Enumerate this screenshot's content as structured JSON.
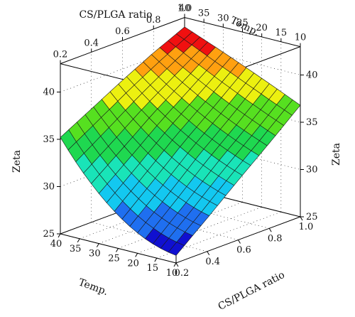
{
  "chart_data": {
    "type": "surface",
    "zlabel": "Zeta",
    "axes": {
      "ratio": {
        "label": "CS/PLGA ratio",
        "ticks": [
          0.2,
          0.4,
          0.6,
          0.8,
          1.0
        ],
        "tick_labels": [
          "0.2",
          "0.4",
          "0.6",
          "0.8",
          "1.0"
        ],
        "range": [
          0.2,
          1.0
        ]
      },
      "temp": {
        "label": "Temp.",
        "ticks": [
          10,
          15,
          20,
          25,
          30,
          35,
          40
        ],
        "tick_labels": [
          "10",
          "15",
          "20",
          "25",
          "30",
          "35",
          "40"
        ],
        "range": [
          10,
          40
        ]
      },
      "zeta": {
        "label": "Zeta",
        "ticks": [
          25,
          30,
          35,
          40
        ],
        "tick_labels": [
          "25",
          "30",
          "35",
          "40"
        ],
        "range": [
          25,
          43
        ]
      }
    },
    "grid": true,
    "color_bands": [
      {
        "from": 25,
        "to": 27,
        "color": "#1010d0"
      },
      {
        "from": 27,
        "to": 29,
        "color": "#1f6ff0"
      },
      {
        "from": 29,
        "to": 31,
        "color": "#13c8f0"
      },
      {
        "from": 31,
        "to": 33,
        "color": "#19e4b8"
      },
      {
        "from": 33,
        "to": 35,
        "color": "#1fd850"
      },
      {
        "from": 35,
        "to": 37,
        "color": "#56e020"
      },
      {
        "from": 37,
        "to": 39,
        "color": "#ecf010"
      },
      {
        "from": 39,
        "to": 40.5,
        "color": "#ffa010"
      },
      {
        "from": 40.5,
        "to": 43,
        "color": "#f01010"
      }
    ],
    "surface_rows": [
      {
        "temp": 10,
        "zeta": [
          25.8,
          28.5,
          31.3,
          34.0,
          36.8
        ]
      },
      {
        "temp": 25,
        "zeta": [
          28.5,
          31.3,
          34.2,
          36.8,
          39.5
        ]
      },
      {
        "temp": 40,
        "zeta": [
          35.2,
          37.0,
          38.8,
          40.5,
          42.0
        ]
      }
    ]
  }
}
